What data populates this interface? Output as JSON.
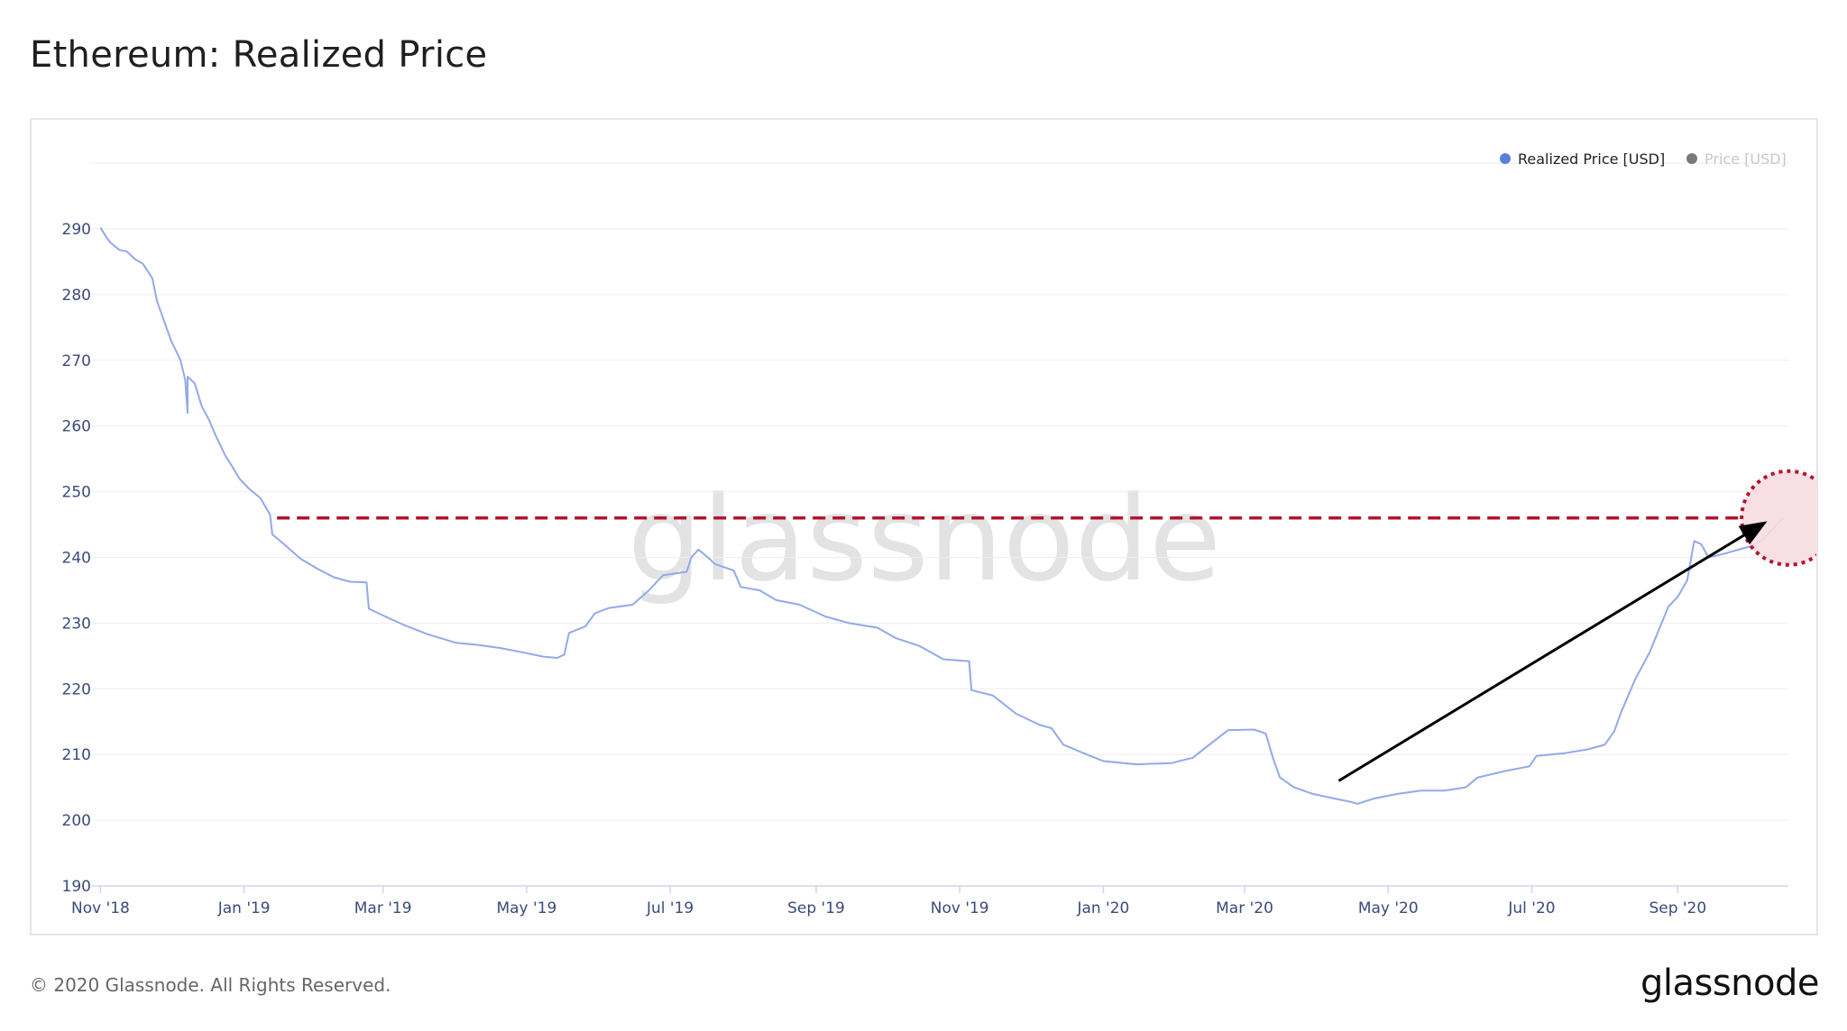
{
  "page": {
    "title": "Ethereum: Realized Price",
    "footer": "© 2020 Glassnode. All Rights Reserved.",
    "brand": "glassnode",
    "watermark": "glassnode"
  },
  "colors": {
    "series": "#92a9ea",
    "legend_dot_realized": "#5b7de0",
    "legend_dot_price": "#7a7a7a",
    "axis_text": "#3b4a7a",
    "grid": "#eeeeee",
    "annotation_red": "#b3142d",
    "annotation_fill": "#f7dbe1",
    "arrow": "#000000"
  },
  "chart_data": {
    "type": "line",
    "title": "Ethereum: Realized Price",
    "xlabel": "",
    "ylabel": "",
    "ylim": [
      190,
      300
    ],
    "xlim": [
      "2018-10-28",
      "2020-10-18"
    ],
    "y_ticks": [
      190,
      200,
      210,
      220,
      230,
      240,
      250,
      260,
      270,
      280,
      290
    ],
    "x_ticks": [
      {
        "date": "2018-11-01",
        "label": "Nov '18"
      },
      {
        "date": "2019-01-01",
        "label": "Jan '19"
      },
      {
        "date": "2019-03-01",
        "label": "Mar '19"
      },
      {
        "date": "2019-05-01",
        "label": "May '19"
      },
      {
        "date": "2019-07-01",
        "label": "Jul '19"
      },
      {
        "date": "2019-09-01",
        "label": "Sep '19"
      },
      {
        "date": "2019-11-01",
        "label": "Nov '19"
      },
      {
        "date": "2020-01-01",
        "label": "Jan '20"
      },
      {
        "date": "2020-03-01",
        "label": "Mar '20"
      },
      {
        "date": "2020-05-01",
        "label": "May '20"
      },
      {
        "date": "2020-07-01",
        "label": "Jul '20"
      },
      {
        "date": "2020-09-01",
        "label": "Sep '20"
      }
    ],
    "grid": true,
    "legend_position": "top-right",
    "legend": [
      {
        "label": "Realized Price [USD]",
        "active": true
      },
      {
        "label": "Price [USD]",
        "active": false
      }
    ],
    "series": [
      {
        "name": "Realized Price [USD]",
        "points": [
          [
            "2018-11-01",
            290.2
          ],
          [
            "2018-11-03",
            289.0
          ],
          [
            "2018-11-05",
            288.0
          ],
          [
            "2018-11-09",
            286.8
          ],
          [
            "2018-11-12",
            286.6
          ],
          [
            "2018-11-16",
            285.3
          ],
          [
            "2018-11-19",
            284.7
          ],
          [
            "2018-11-23",
            282.5
          ],
          [
            "2018-11-25",
            279.0
          ],
          [
            "2018-11-28",
            276.0
          ],
          [
            "2018-12-01",
            273.0
          ],
          [
            "2018-12-05",
            270.0
          ],
          [
            "2018-12-07",
            267.0
          ],
          [
            "2018-12-08",
            262.0
          ],
          [
            "2018-12-08",
            267.5
          ],
          [
            "2018-12-11",
            266.5
          ],
          [
            "2018-12-14",
            263.0
          ],
          [
            "2018-12-17",
            261.0
          ],
          [
            "2018-12-20",
            258.5
          ],
          [
            "2018-12-24",
            255.5
          ],
          [
            "2018-12-27",
            253.8
          ],
          [
            "2018-12-30",
            252.0
          ],
          [
            "2019-01-03",
            250.5
          ],
          [
            "2019-01-08",
            249.0
          ],
          [
            "2019-01-12",
            246.5
          ],
          [
            "2019-01-13",
            243.5
          ],
          [
            "2019-01-18",
            242.0
          ],
          [
            "2019-01-25",
            239.8
          ],
          [
            "2019-02-01",
            238.3
          ],
          [
            "2019-02-08",
            237.0
          ],
          [
            "2019-02-15",
            236.3
          ],
          [
            "2019-02-22",
            236.2
          ],
          [
            "2019-02-23",
            232.2
          ],
          [
            "2019-03-02",
            231.0
          ],
          [
            "2019-03-10",
            229.7
          ],
          [
            "2019-03-20",
            228.3
          ],
          [
            "2019-04-01",
            227.0
          ],
          [
            "2019-04-10",
            226.7
          ],
          [
            "2019-04-20",
            226.2
          ],
          [
            "2019-04-30",
            225.5
          ],
          [
            "2019-05-08",
            224.9
          ],
          [
            "2019-05-14",
            224.7
          ],
          [
            "2019-05-17",
            225.2
          ],
          [
            "2019-05-19",
            228.5
          ],
          [
            "2019-05-26",
            229.5
          ],
          [
            "2019-05-30",
            231.5
          ],
          [
            "2019-06-05",
            232.3
          ],
          [
            "2019-06-15",
            232.8
          ],
          [
            "2019-06-22",
            235.0
          ],
          [
            "2019-06-28",
            237.3
          ],
          [
            "2019-07-08",
            237.8
          ],
          [
            "2019-07-10",
            240.0
          ],
          [
            "2019-07-13",
            241.2
          ],
          [
            "2019-07-17",
            240.0
          ],
          [
            "2019-07-20",
            239.0
          ],
          [
            "2019-07-28",
            238.0
          ],
          [
            "2019-07-31",
            235.5
          ],
          [
            "2019-08-08",
            235.0
          ],
          [
            "2019-08-15",
            233.5
          ],
          [
            "2019-08-25",
            232.8
          ],
          [
            "2019-09-05",
            231.0
          ],
          [
            "2019-09-15",
            230.0
          ],
          [
            "2019-09-27",
            229.3
          ],
          [
            "2019-10-05",
            227.7
          ],
          [
            "2019-10-15",
            226.5
          ],
          [
            "2019-10-25",
            224.5
          ],
          [
            "2019-11-05",
            224.2
          ],
          [
            "2019-11-06",
            219.8
          ],
          [
            "2019-11-15",
            219.0
          ],
          [
            "2019-11-25",
            216.2
          ],
          [
            "2019-12-05",
            214.5
          ],
          [
            "2019-12-10",
            214.0
          ],
          [
            "2019-12-15",
            211.5
          ],
          [
            "2019-12-25",
            210.0
          ],
          [
            "2020-01-01",
            209.0
          ],
          [
            "2020-01-15",
            208.5
          ],
          [
            "2020-01-30",
            208.7
          ],
          [
            "2020-02-08",
            209.5
          ],
          [
            "2020-02-15",
            211.5
          ],
          [
            "2020-02-23",
            213.7
          ],
          [
            "2020-03-05",
            213.8
          ],
          [
            "2020-03-10",
            213.2
          ],
          [
            "2020-03-13",
            209.5
          ],
          [
            "2020-03-16",
            206.5
          ],
          [
            "2020-03-22",
            205.0
          ],
          [
            "2020-03-30",
            204.0
          ],
          [
            "2020-04-08",
            203.3
          ],
          [
            "2020-04-15",
            202.8
          ],
          [
            "2020-04-18",
            202.5
          ],
          [
            "2020-04-25",
            203.3
          ],
          [
            "2020-05-05",
            204.0
          ],
          [
            "2020-05-15",
            204.5
          ],
          [
            "2020-05-25",
            204.5
          ],
          [
            "2020-06-03",
            205.0
          ],
          [
            "2020-06-08",
            206.5
          ],
          [
            "2020-06-20",
            207.5
          ],
          [
            "2020-06-30",
            208.2
          ],
          [
            "2020-07-03",
            209.8
          ],
          [
            "2020-07-15",
            210.2
          ],
          [
            "2020-07-25",
            210.8
          ],
          [
            "2020-08-01",
            211.5
          ],
          [
            "2020-08-05",
            213.5
          ],
          [
            "2020-08-08",
            216.5
          ],
          [
            "2020-08-14",
            221.5
          ],
          [
            "2020-08-20",
            225.5
          ],
          [
            "2020-08-24",
            229.0
          ],
          [
            "2020-08-28",
            232.5
          ],
          [
            "2020-09-01",
            234.0
          ],
          [
            "2020-09-05",
            236.5
          ],
          [
            "2020-09-08",
            242.5
          ],
          [
            "2020-09-11",
            242.0
          ],
          [
            "2020-09-14",
            240.0
          ],
          [
            "2020-09-20",
            240.5
          ],
          [
            "2020-09-28",
            241.3
          ],
          [
            "2020-10-03",
            241.8
          ],
          [
            "2020-10-08",
            243.0
          ],
          [
            "2020-10-13",
            245.0
          ],
          [
            "2020-10-16",
            246.0
          ]
        ]
      }
    ],
    "annotations": {
      "dashed_line": {
        "from_date": "2019-01-15",
        "to_date": "2020-10-15",
        "y": 246
      },
      "circle_center": {
        "date": "2020-10-15",
        "y": 246
      },
      "arrow": {
        "from": {
          "date": "2020-04-10",
          "y": 206
        },
        "to": {
          "date": "2020-10-09",
          "y": 245.5
        }
      }
    }
  }
}
